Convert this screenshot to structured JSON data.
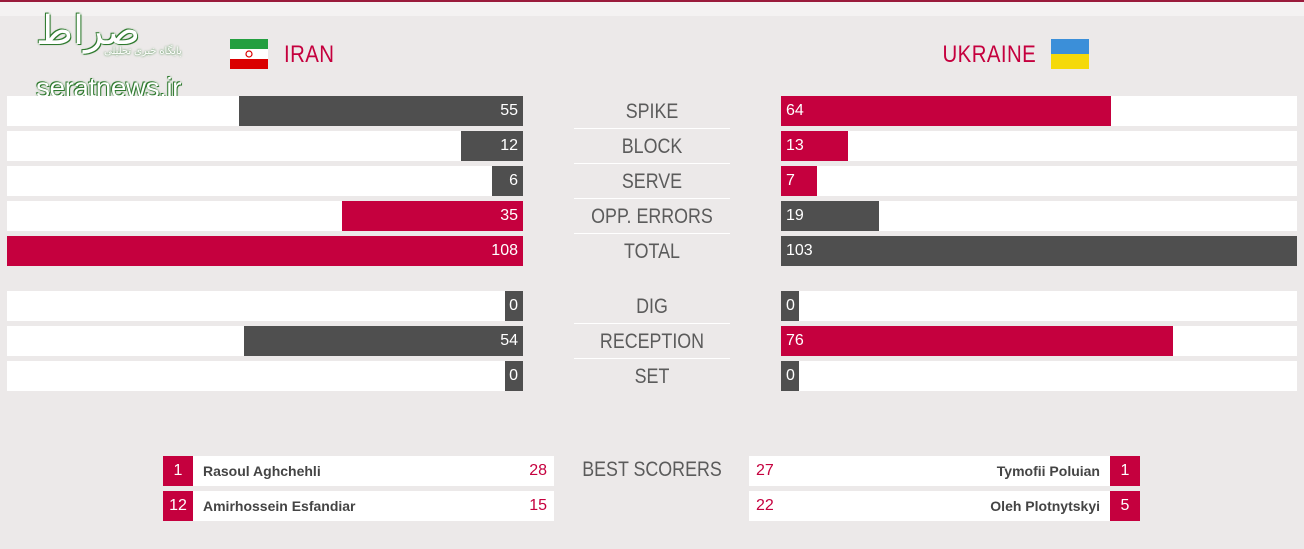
{
  "watermark": {
    "script_text": "صراط",
    "sub_text": "پایگاه خبری تحلیلی",
    "url_text": "seratnews.ir"
  },
  "teams": {
    "left": {
      "name": "IRAN",
      "flag_icon": "iran-flag-icon"
    },
    "right": {
      "name": "UKRAINE",
      "flag_icon": "ukraine-flag-icon"
    }
  },
  "colors": {
    "accent": "#c5003e",
    "dark": "#4f4f4f",
    "track": "#ffffff",
    "background": "#ece9e9"
  },
  "stats": [
    {
      "label": "SPIKE",
      "left": "55",
      "right": "64",
      "left_frac": 0.551,
      "right_frac": 0.64,
      "left_color": "dark",
      "right_color": "accent"
    },
    {
      "label": "BLOCK",
      "left": "12",
      "right": "13",
      "left_frac": 0.12,
      "right_frac": 0.13,
      "left_color": "dark",
      "right_color": "accent"
    },
    {
      "label": "SERVE",
      "left": "6",
      "right": "7",
      "left_frac": 0.06,
      "right_frac": 0.07,
      "left_color": "dark",
      "right_color": "accent"
    },
    {
      "label": "OPP. ERRORS",
      "left": "35",
      "right": "19",
      "left_frac": 0.351,
      "right_frac": 0.19,
      "left_color": "accent",
      "right_color": "dark"
    },
    {
      "label": "TOTAL",
      "left": "108",
      "right": "103",
      "left_frac": 1.0,
      "right_frac": 1.0,
      "left_color": "accent",
      "right_color": "dark"
    },
    {
      "label": "DIG",
      "left": "0",
      "right": "0",
      "left_frac": 0,
      "right_frac": 0,
      "left_color": "dark",
      "right_color": "dark"
    },
    {
      "label": "RECEPTION",
      "left": "54",
      "right": "76",
      "left_frac": 0.541,
      "right_frac": 0.76,
      "left_color": "dark",
      "right_color": "accent"
    },
    {
      "label": "SET",
      "left": "0",
      "right": "0",
      "left_frac": 0,
      "right_frac": 0,
      "left_color": "dark",
      "right_color": "dark"
    }
  ],
  "best_scorers": {
    "label": "BEST SCORERS",
    "left": [
      {
        "number": "1",
        "name": "Rasoul Aghchehli",
        "points": "28"
      },
      {
        "number": "12",
        "name": "Amirhossein Esfandiar",
        "points": "15"
      }
    ],
    "right": [
      {
        "number": "1",
        "name": "Tymofii Poluian",
        "points": "27"
      },
      {
        "number": "5",
        "name": "Oleh Plotnytskyi",
        "points": "22"
      }
    ]
  }
}
